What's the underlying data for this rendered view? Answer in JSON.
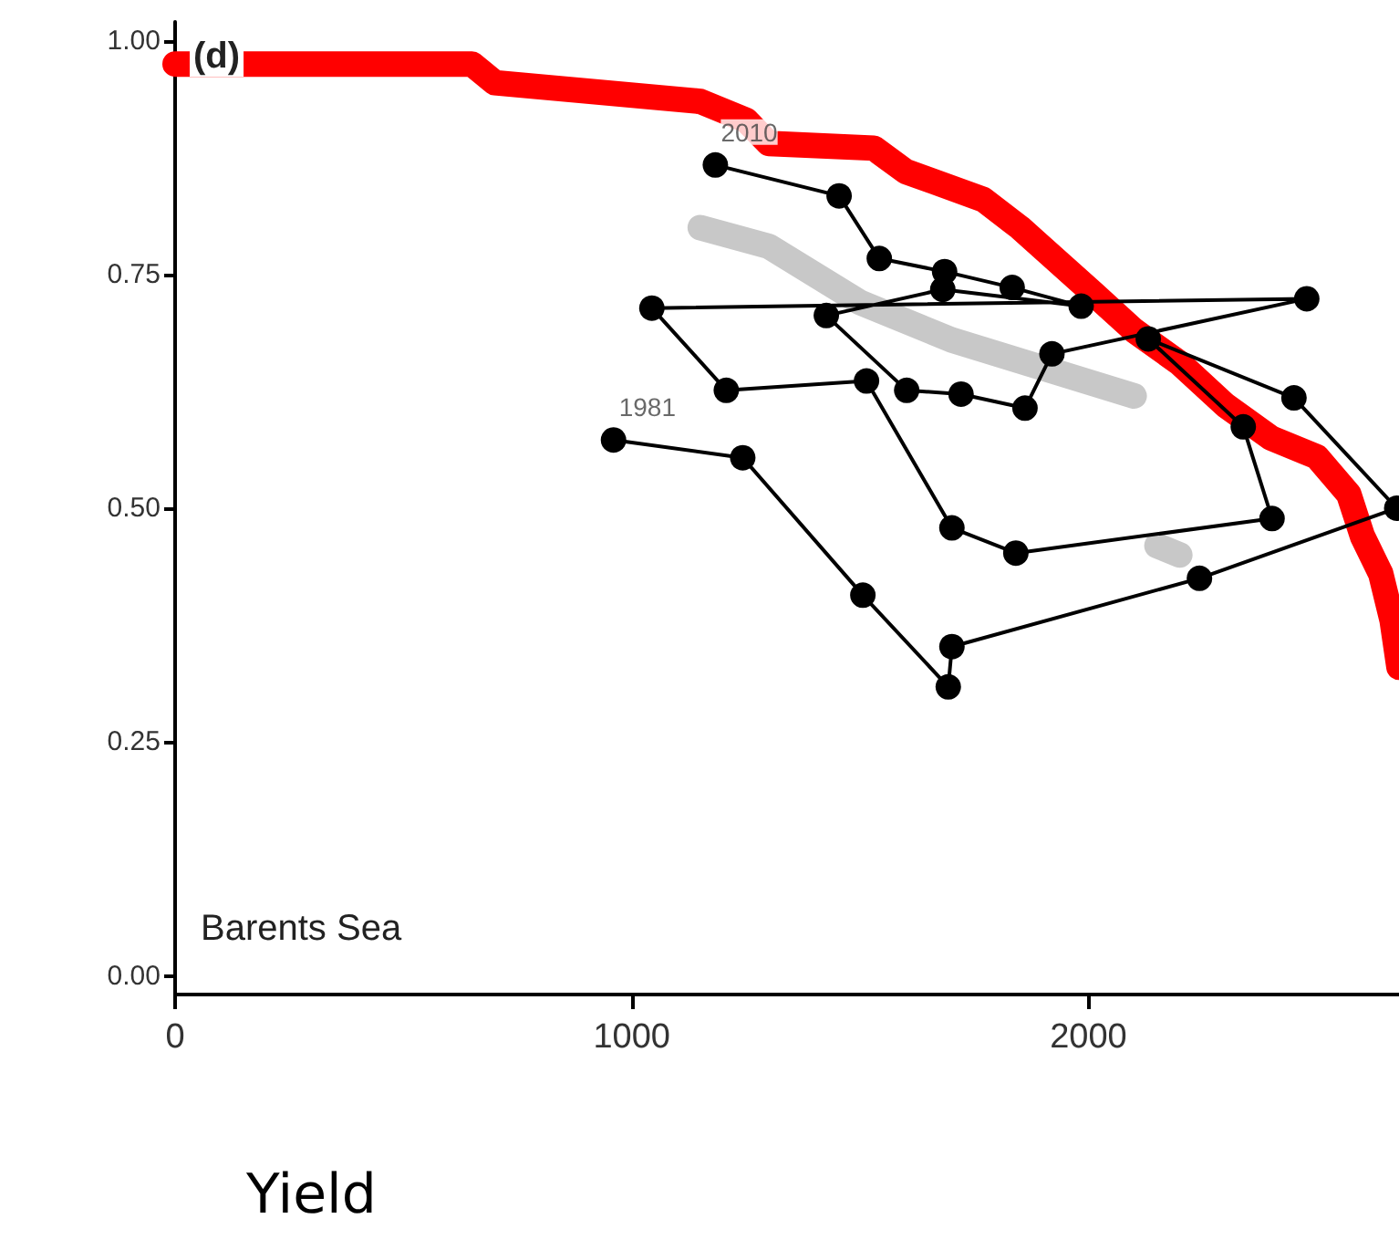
{
  "chart_data": {
    "type": "line",
    "xlabel": "Yield",
    "annotations": [
      "(d)",
      "Barents Sea",
      {
        "text": "1981",
        "x": 960,
        "y": 0.573
      },
      {
        "text": "2010",
        "x": 1183,
        "y": 0.867
      }
    ],
    "xlim": [
      0,
      2680
    ],
    "xticks": [
      0,
      1000,
      2000
    ],
    "ylim": [
      -0.02,
      1.02
    ],
    "yticks": [
      {
        "value": 0,
        "label": "0.00"
      },
      {
        "value": 0.25,
        "label": "0.25"
      },
      {
        "value": 0.5,
        "label": "0.50"
      },
      {
        "value": 0.75,
        "label": "0.75"
      },
      {
        "value": 1,
        "label": "1.00"
      }
    ],
    "grid": false,
    "series": [
      {
        "color": "#c8c8c8",
        "marker": "none",
        "x": [
          1150,
          1300,
          1500,
          1700,
          1900,
          2100,
          null,
          2150,
          2200
        ],
        "values": [
          0.8,
          0.78,
          0.72,
          0.68,
          0.65,
          0.62,
          null,
          0.46,
          0.45
        ]
      },
      {
        "color": "#ff0000",
        "marker": "none",
        "x": [
          0,
          650,
          700,
          1150,
          1250,
          1300,
          1530,
          1600,
          1770,
          1850,
          2010,
          2100,
          2200,
          2300,
          2400,
          2500,
          2570,
          2600,
          2640,
          2665,
          2680
        ],
        "values": [
          0.975,
          0.975,
          0.955,
          0.935,
          0.915,
          0.89,
          0.885,
          0.86,
          0.83,
          0.8,
          0.73,
          0.69,
          0.655,
          0.61,
          0.575,
          0.555,
          0.515,
          0.47,
          0.43,
          0.38,
          0.33
        ]
      },
      {
        "color": "#000000",
        "marker": "circle",
        "x": [
          960,
          1243,
          1506,
          1693,
          1701,
          2243,
          2675,
          2450,
          2131,
          2339,
          2402,
          1841,
          1701,
          1514,
          1207,
          1044,
          2478,
          1920,
          1861,
          1721,
          1602,
          1426,
          1681,
          1984,
          1833,
          1685,
          1542,
          1454,
          1183
        ],
        "values": [
          0.573,
          0.554,
          0.407,
          0.309,
          0.352,
          0.425,
          0.5,
          0.618,
          0.681,
          0.587,
          0.489,
          0.452,
          0.479,
          0.636,
          0.626,
          0.714,
          0.724,
          0.665,
          0.607,
          0.622,
          0.626,
          0.706,
          0.734,
          0.716,
          0.736,
          0.753,
          0.767,
          0.834,
          0.867
        ]
      }
    ]
  }
}
